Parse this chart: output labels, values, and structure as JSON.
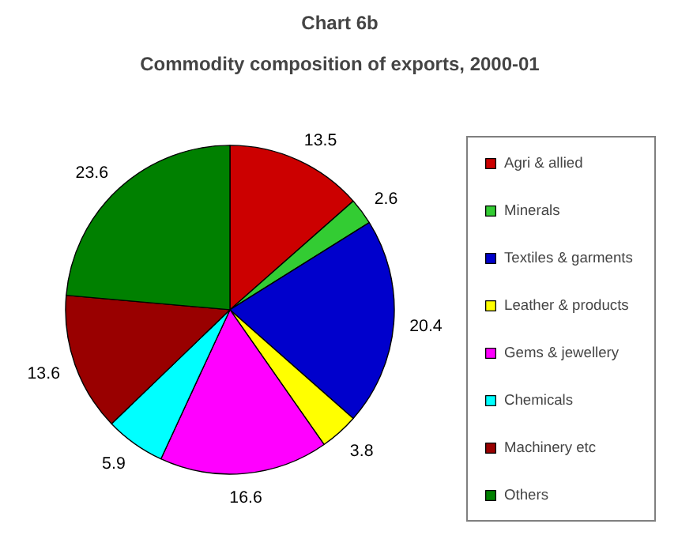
{
  "chart_data": {
    "type": "pie",
    "title": "Chart 6b",
    "subtitle": "Commodity composition of exports, 2000-01",
    "categories": [
      "Agri & allied",
      "Minerals",
      "Textiles & garments",
      "Leather & products",
      "Gems & jewellery",
      "Chemicals",
      "Machinery etc",
      "Others"
    ],
    "values": [
      13.5,
      2.6,
      20.4,
      3.8,
      16.6,
      5.9,
      13.6,
      23.6
    ],
    "colors": [
      "#cc0000",
      "#33cc33",
      "#0000cc",
      "#ffff00",
      "#ff00ff",
      "#00ffff",
      "#990000",
      "#008000"
    ],
    "data_labels": true,
    "legend": "right"
  }
}
